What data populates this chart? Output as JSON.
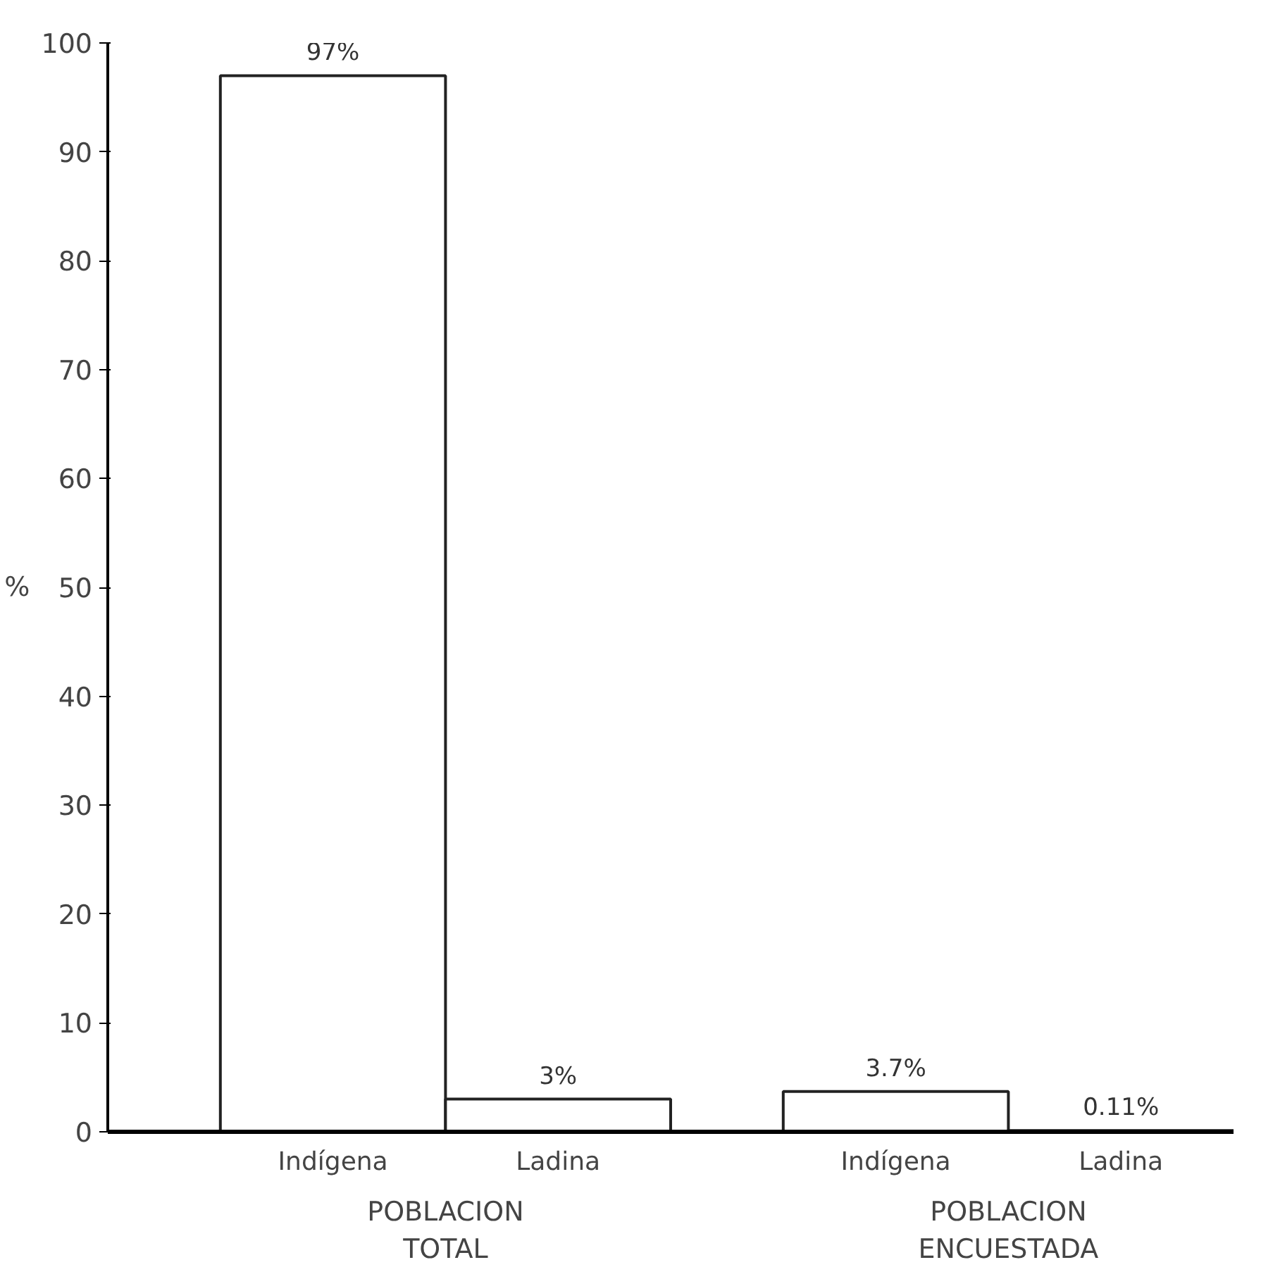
{
  "chart_data": {
    "type": "bar",
    "ylabel": "%",
    "categories": [
      "Indígena",
      "Ladina",
      "Indígena",
      "Ladina"
    ],
    "values": [
      97,
      3,
      3.7,
      0.11
    ],
    "value_labels": [
      "97%",
      "3%",
      "3.7%",
      "0.11%"
    ],
    "colors": [
      "#ffffff",
      "#ffffff",
      "#ffffff",
      "#222222"
    ],
    "annotations": [
      "POBLACION\nTOTAL",
      "POBLACION\nENCUESTADA"
    ],
    "ylim": [
      0,
      100
    ],
    "yticks": [
      0,
      10,
      20,
      30,
      40,
      50,
      60,
      70,
      80,
      90,
      100
    ],
    "grid": false
  }
}
